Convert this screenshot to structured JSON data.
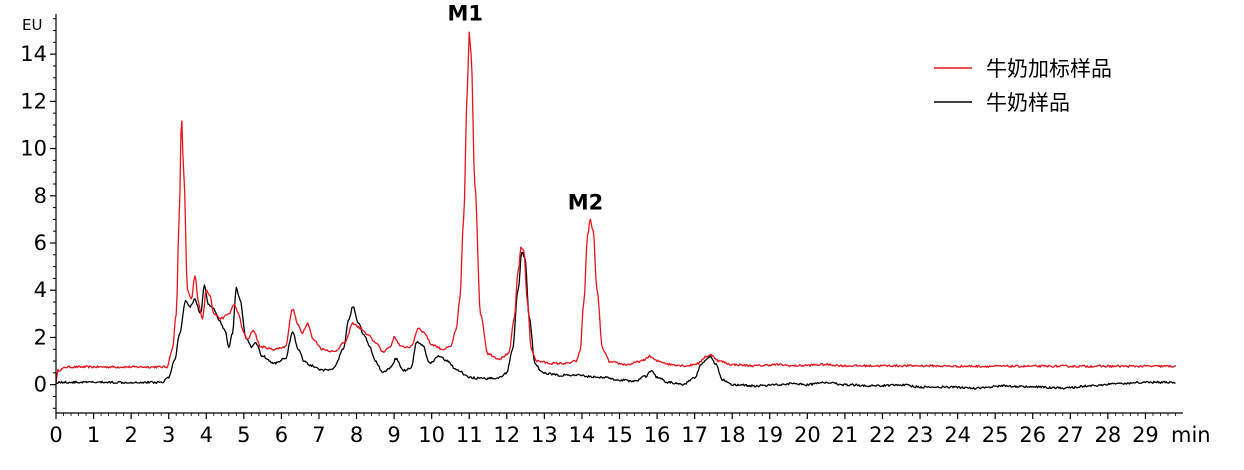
{
  "chart_data": {
    "type": "line",
    "title": "",
    "xlabel": "min",
    "ylabel": "EU",
    "xlim": [
      0,
      30
    ],
    "ylim": [
      -1.2,
      15.7
    ],
    "x_ticks": [
      0,
      1,
      2,
      3,
      4,
      5,
      6,
      7,
      8,
      9,
      10,
      11,
      12,
      13,
      14,
      15,
      16,
      17,
      18,
      19,
      20,
      21,
      22,
      23,
      24,
      25,
      26,
      27,
      28,
      29
    ],
    "y_ticks": [
      0,
      2,
      4,
      6,
      8,
      10,
      12,
      14
    ],
    "grid": false,
    "legend_position": "top-right",
    "colors": {
      "spiked": "#e8141c",
      "plain": "#000000"
    },
    "annotations": [
      {
        "text": "M1",
        "x": 11.0,
        "y": 15.0
      },
      {
        "text": "M2",
        "x": 14.2,
        "y": 7.0
      }
    ],
    "series": [
      {
        "name": "牛奶加标样品",
        "color": "#e8141c",
        "baseline": 0.75,
        "points": [
          [
            0,
            0.1
          ],
          [
            0.05,
            0.6
          ],
          [
            0.3,
            0.75
          ],
          [
            2.95,
            0.75
          ],
          [
            3.1,
            1.5
          ],
          [
            3.2,
            3.0
          ],
          [
            3.28,
            7.0
          ],
          [
            3.34,
            11.3
          ],
          [
            3.4,
            9.0
          ],
          [
            3.5,
            4.0
          ],
          [
            3.6,
            3.6
          ],
          [
            3.7,
            4.6
          ],
          [
            3.8,
            3.4
          ],
          [
            3.9,
            2.8
          ],
          [
            4.0,
            4.0
          ],
          [
            4.1,
            3.8
          ],
          [
            4.2,
            3.0
          ],
          [
            4.4,
            2.8
          ],
          [
            4.6,
            3.0
          ],
          [
            4.75,
            3.4
          ],
          [
            4.85,
            3.0
          ],
          [
            5.0,
            2.2
          ],
          [
            5.1,
            1.9
          ],
          [
            5.25,
            2.3
          ],
          [
            5.45,
            1.6
          ],
          [
            5.8,
            1.5
          ],
          [
            6.1,
            1.6
          ],
          [
            6.3,
            3.2
          ],
          [
            6.45,
            2.5
          ],
          [
            6.55,
            2.2
          ],
          [
            6.7,
            2.6
          ],
          [
            6.85,
            1.9
          ],
          [
            7.1,
            1.5
          ],
          [
            7.4,
            1.4
          ],
          [
            7.7,
            1.8
          ],
          [
            7.9,
            2.6
          ],
          [
            8.1,
            2.4
          ],
          [
            8.3,
            2.1
          ],
          [
            8.5,
            1.8
          ],
          [
            8.7,
            1.4
          ],
          [
            8.9,
            1.6
          ],
          [
            9.0,
            2.0
          ],
          [
            9.2,
            1.6
          ],
          [
            9.45,
            1.6
          ],
          [
            9.65,
            2.4
          ],
          [
            9.8,
            2.2
          ],
          [
            10.0,
            1.7
          ],
          [
            10.3,
            1.5
          ],
          [
            10.5,
            1.6
          ],
          [
            10.65,
            2.3
          ],
          [
            10.75,
            3.6
          ],
          [
            10.85,
            7.0
          ],
          [
            10.95,
            12.5
          ],
          [
            11.0,
            14.9
          ],
          [
            11.05,
            14.0
          ],
          [
            11.15,
            8.5
          ],
          [
            11.3,
            3.0
          ],
          [
            11.5,
            1.3
          ],
          [
            11.8,
            1.1
          ],
          [
            12.05,
            1.3
          ],
          [
            12.2,
            2.8
          ],
          [
            12.3,
            4.8
          ],
          [
            12.38,
            5.8
          ],
          [
            12.45,
            5.7
          ],
          [
            12.55,
            3.5
          ],
          [
            12.65,
            1.5
          ],
          [
            12.8,
            1.0
          ],
          [
            13.2,
            0.9
          ],
          [
            13.6,
            0.9
          ],
          [
            13.85,
            1.0
          ],
          [
            13.95,
            1.4
          ],
          [
            14.05,
            3.5
          ],
          [
            14.15,
            6.3
          ],
          [
            14.22,
            7.0
          ],
          [
            14.3,
            6.5
          ],
          [
            14.4,
            4.0
          ],
          [
            14.55,
            1.5
          ],
          [
            14.75,
            0.95
          ],
          [
            15.2,
            0.85
          ],
          [
            15.6,
            1.0
          ],
          [
            15.8,
            1.2
          ],
          [
            16.0,
            1.0
          ],
          [
            16.4,
            0.85
          ],
          [
            16.8,
            0.8
          ],
          [
            17.1,
            0.9
          ],
          [
            17.3,
            1.2
          ],
          [
            17.45,
            1.25
          ],
          [
            17.65,
            1.0
          ],
          [
            18.0,
            0.85
          ],
          [
            18.6,
            0.8
          ],
          [
            19.2,
            0.85
          ],
          [
            19.6,
            0.8
          ],
          [
            20.5,
            0.85
          ],
          [
            21.0,
            0.8
          ],
          [
            22.0,
            0.8
          ],
          [
            23.0,
            0.8
          ],
          [
            24.0,
            0.78
          ],
          [
            25.0,
            0.78
          ],
          [
            26.0,
            0.78
          ],
          [
            27.0,
            0.78
          ],
          [
            28.0,
            0.78
          ],
          [
            29.0,
            0.78
          ],
          [
            29.8,
            0.78
          ]
        ]
      },
      {
        "name": "牛奶样品",
        "color": "#000000",
        "baseline": 0.1,
        "points": [
          [
            0,
            0.1
          ],
          [
            0.3,
            0.1
          ],
          [
            2.8,
            0.1
          ],
          [
            3.0,
            0.3
          ],
          [
            3.15,
            1.0
          ],
          [
            3.3,
            2.2
          ],
          [
            3.45,
            3.6
          ],
          [
            3.55,
            3.3
          ],
          [
            3.7,
            3.6
          ],
          [
            3.85,
            3.0
          ],
          [
            3.95,
            4.2
          ],
          [
            4.05,
            3.4
          ],
          [
            4.2,
            3.2
          ],
          [
            4.35,
            2.7
          ],
          [
            4.5,
            2.3
          ],
          [
            4.6,
            1.6
          ],
          [
            4.7,
            2.2
          ],
          [
            4.8,
            4.1
          ],
          [
            4.9,
            3.6
          ],
          [
            5.05,
            2.0
          ],
          [
            5.2,
            1.6
          ],
          [
            5.3,
            1.8
          ],
          [
            5.5,
            1.2
          ],
          [
            5.8,
            0.9
          ],
          [
            6.1,
            1.1
          ],
          [
            6.3,
            2.2
          ],
          [
            6.45,
            1.5
          ],
          [
            6.6,
            1.0
          ],
          [
            6.8,
            0.8
          ],
          [
            7.1,
            0.6
          ],
          [
            7.4,
            0.7
          ],
          [
            7.65,
            1.5
          ],
          [
            7.8,
            2.8
          ],
          [
            7.9,
            3.3
          ],
          [
            8.05,
            2.6
          ],
          [
            8.2,
            2.1
          ],
          [
            8.35,
            1.6
          ],
          [
            8.5,
            1.0
          ],
          [
            8.7,
            0.5
          ],
          [
            8.9,
            0.7
          ],
          [
            9.05,
            1.1
          ],
          [
            9.25,
            0.6
          ],
          [
            9.45,
            0.7
          ],
          [
            9.6,
            1.8
          ],
          [
            9.75,
            1.7
          ],
          [
            9.95,
            0.9
          ],
          [
            10.2,
            1.2
          ],
          [
            10.4,
            1.0
          ],
          [
            10.7,
            0.6
          ],
          [
            11.0,
            0.3
          ],
          [
            11.4,
            0.25
          ],
          [
            11.8,
            0.3
          ],
          [
            12.0,
            0.5
          ],
          [
            12.15,
            1.5
          ],
          [
            12.3,
            4.0
          ],
          [
            12.4,
            5.6
          ],
          [
            12.48,
            5.4
          ],
          [
            12.6,
            2.8
          ],
          [
            12.75,
            0.9
          ],
          [
            12.95,
            0.5
          ],
          [
            13.4,
            0.4
          ],
          [
            13.8,
            0.4
          ],
          [
            14.2,
            0.35
          ],
          [
            14.6,
            0.3
          ],
          [
            15.0,
            0.2
          ],
          [
            15.4,
            0.15
          ],
          [
            15.7,
            0.35
          ],
          [
            15.85,
            0.6
          ],
          [
            16.0,
            0.3
          ],
          [
            16.3,
            0.1
          ],
          [
            16.7,
            0.0
          ],
          [
            17.0,
            0.3
          ],
          [
            17.2,
            0.9
          ],
          [
            17.4,
            1.2
          ],
          [
            17.55,
            0.9
          ],
          [
            17.75,
            0.2
          ],
          [
            18.0,
            0.0
          ],
          [
            18.6,
            -0.05
          ],
          [
            19.2,
            0.0
          ],
          [
            19.6,
            0.05
          ],
          [
            20.0,
            0.0
          ],
          [
            20.5,
            0.1
          ],
          [
            21.0,
            0.0
          ],
          [
            21.8,
            -0.05
          ],
          [
            22.5,
            0.0
          ],
          [
            23.0,
            -0.1
          ],
          [
            23.8,
            -0.1
          ],
          [
            24.5,
            -0.15
          ],
          [
            25.2,
            -0.05
          ],
          [
            26.0,
            -0.1
          ],
          [
            26.8,
            -0.15
          ],
          [
            27.5,
            -0.05
          ],
          [
            28.3,
            0.05
          ],
          [
            29.0,
            0.1
          ],
          [
            29.8,
            0.1
          ]
        ]
      }
    ]
  }
}
